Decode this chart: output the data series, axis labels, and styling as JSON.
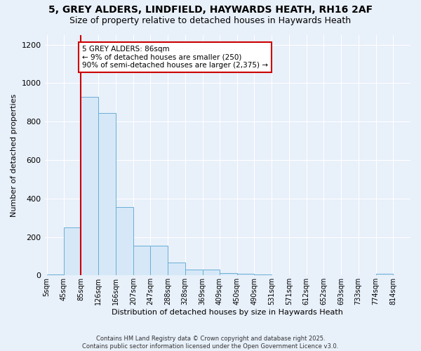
{
  "title": "5, GREY ALDERS, LINDFIELD, HAYWARDS HEATH, RH16 2AF",
  "subtitle": "Size of property relative to detached houses in Haywards Heath",
  "xlabel": "Distribution of detached houses by size in Haywards Heath",
  "ylabel": "Number of detached properties",
  "bar_color": "#d6e8f7",
  "bar_edge_color": "#6aaed6",
  "bg_color": "#e8f0fa",
  "fig_bg_color": "#e8f0fa",
  "grid_color": "#ffffff",
  "vline_color": "#cc0000",
  "vline_x": 85,
  "annotation_text": "5 GREY ALDERS: 86sqm\n← 9% of detached houses are smaller (250)\n90% of semi-detached houses are larger (2,375) →",
  "annotation_box_edge": "#cc0000",
  "bin_edges": [
    5,
    45,
    85,
    126,
    166,
    207,
    247,
    288,
    328,
    369,
    409,
    450,
    490,
    531,
    571,
    612,
    652,
    693,
    733,
    774,
    814,
    855
  ],
  "values": [
    5,
    248,
    930,
    845,
    355,
    155,
    155,
    65,
    30,
    30,
    12,
    10,
    5,
    0,
    0,
    0,
    0,
    0,
    0,
    8,
    0
  ],
  "xtick_labels": [
    "5sqm",
    "45sqm",
    "85sqm",
    "126sqm",
    "166sqm",
    "207sqm",
    "247sqm",
    "288sqm",
    "328sqm",
    "369sqm",
    "409sqm",
    "450sqm",
    "490sqm",
    "531sqm",
    "571sqm",
    "612sqm",
    "652sqm",
    "693sqm",
    "733sqm",
    "774sqm",
    "814sqm"
  ],
  "ylim": [
    0,
    1250
  ],
  "yticks": [
    0,
    200,
    400,
    600,
    800,
    1000,
    1200
  ],
  "title_fontsize": 10,
  "subtitle_fontsize": 9,
  "copyright_text": "Contains HM Land Registry data © Crown copyright and database right 2025.\nContains public sector information licensed under the Open Government Licence v3.0."
}
